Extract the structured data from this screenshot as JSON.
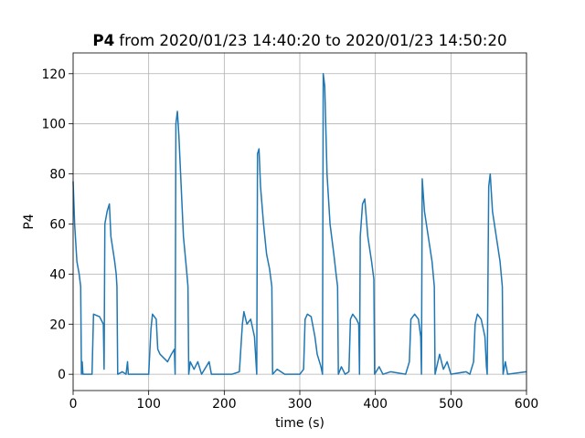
{
  "chart_data": {
    "type": "line",
    "title_bold": "P4",
    "title": "from 2020/01/23 14:40:20 to 2020/01/23 14:50:20",
    "xlabel": "time (s)",
    "ylabel": "P4",
    "color": "#1f77b4",
    "grid": true,
    "xlim": [
      0,
      600
    ],
    "ylim": [
      -6.5,
      128.3
    ],
    "xticks": [
      0,
      100,
      200,
      300,
      400,
      500,
      600
    ],
    "yticks": [
      0,
      20,
      40,
      60,
      80,
      100,
      120
    ],
    "x": [
      0,
      2,
      5,
      8,
      10,
      11,
      12,
      13,
      25,
      27,
      35,
      40,
      41,
      42,
      45,
      48,
      50,
      55,
      57,
      58,
      59,
      65,
      70,
      72,
      73,
      100,
      103,
      105,
      110,
      112,
      115,
      125,
      130,
      134,
      135,
      136,
      138,
      140,
      143,
      146,
      150,
      152,
      153,
      155,
      160,
      165,
      170,
      180,
      183,
      200,
      210,
      220,
      224,
      226,
      230,
      235,
      240,
      242,
      243,
      244,
      246,
      248,
      252,
      256,
      260,
      263,
      264,
      270,
      280,
      300,
      305,
      307,
      310,
      315,
      320,
      323,
      328,
      330,
      331,
      333,
      336,
      340,
      345,
      348,
      350,
      351,
      355,
      360,
      365,
      367,
      370,
      375,
      378,
      379,
      380,
      383,
      386,
      390,
      395,
      398,
      399,
      405,
      410,
      420,
      440,
      445,
      447,
      452,
      457,
      460,
      461,
      462,
      465,
      470,
      475,
      478,
      479,
      485,
      490,
      495,
      500,
      520,
      525,
      530,
      532,
      535,
      540,
      545,
      547,
      548,
      550,
      552,
      555,
      560,
      565,
      568,
      569,
      572,
      575,
      600
    ],
    "values": [
      77,
      60,
      45,
      40,
      35,
      0,
      5,
      0,
      0,
      24,
      23,
      20,
      2,
      60,
      65,
      68,
      55,
      45,
      40,
      35,
      0,
      1,
      0,
      5,
      0,
      0,
      18,
      24,
      22,
      10,
      8,
      5,
      8,
      10,
      0,
      100,
      105,
      95,
      75,
      55,
      42,
      35,
      0,
      5,
      2,
      5,
      0,
      5,
      0,
      0,
      0,
      1,
      20,
      25,
      20,
      22,
      15,
      5,
      0,
      88,
      90,
      75,
      60,
      48,
      42,
      35,
      0,
      2,
      0,
      0,
      2,
      22,
      24,
      23,
      15,
      8,
      3,
      0,
      120,
      115,
      80,
      60,
      48,
      40,
      35,
      0,
      3,
      0,
      1,
      22,
      24,
      22,
      20,
      0,
      55,
      68,
      70,
      55,
      45,
      38,
      0,
      3,
      0,
      1,
      0,
      5,
      22,
      24,
      22,
      15,
      0,
      78,
      65,
      55,
      45,
      35,
      0,
      8,
      2,
      5,
      0,
      1,
      0,
      5,
      20,
      24,
      22,
      15,
      3,
      0,
      75,
      80,
      65,
      55,
      45,
      35,
      0,
      5,
      0,
      1
    ]
  }
}
